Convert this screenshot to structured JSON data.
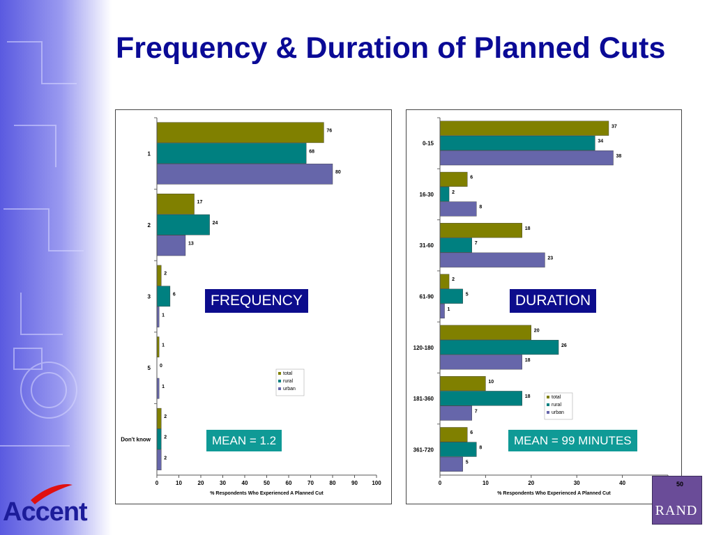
{
  "title": "Frequency & Duration of Planned Cuts",
  "slide_number": "50",
  "brand": {
    "name": "Accent",
    "partner": "RAND"
  },
  "colors": {
    "title": "#0a0a96",
    "label_bg": "#0c0c8c",
    "mean_bg": "#0f9a96",
    "total": "#808000",
    "rural": "#008080",
    "urban": "#6666aa"
  },
  "labels": {
    "frequency": "FREQUENCY",
    "duration": "DURATION",
    "frequency_mean": "MEAN = 1.2",
    "duration_mean": "MEAN = 99 MINUTES"
  },
  "chart_data": [
    {
      "type": "bar",
      "orientation": "horizontal",
      "categories": [
        "1",
        "2",
        "3",
        "5",
        "Don't know"
      ],
      "series": [
        {
          "name": "total",
          "values": [
            76,
            17,
            2,
            1,
            2
          ]
        },
        {
          "name": "rural",
          "values": [
            68,
            24,
            6,
            0,
            2
          ]
        },
        {
          "name": "urban",
          "values": [
            80,
            13,
            1,
            1,
            2
          ]
        }
      ],
      "xlabel": "% Respondents Who Experienced A Planned Cut",
      "xlim": [
        0,
        100
      ],
      "xticks": [
        0,
        10,
        20,
        30,
        40,
        50,
        60,
        70,
        80,
        90,
        100
      ],
      "legend": "center-right",
      "grid": false
    },
    {
      "type": "bar",
      "orientation": "horizontal",
      "categories": [
        "0-15",
        "16-30",
        "31-60",
        "61-90",
        "120-180",
        "181-360",
        "361-720"
      ],
      "series": [
        {
          "name": "total",
          "values": [
            37,
            6,
            18,
            2,
            20,
            10,
            6
          ]
        },
        {
          "name": "rural",
          "values": [
            34,
            2,
            7,
            5,
            26,
            18,
            8
          ]
        },
        {
          "name": "urban",
          "values": [
            38,
            8,
            23,
            1,
            18,
            7,
            5
          ]
        }
      ],
      "xlabel": "% Respondents Who Experienced A Planned Cut",
      "xlim": [
        0,
        50
      ],
      "xticks": [
        0,
        10,
        20,
        30,
        40,
        50
      ],
      "legend": "bottom-right",
      "grid": false
    }
  ]
}
